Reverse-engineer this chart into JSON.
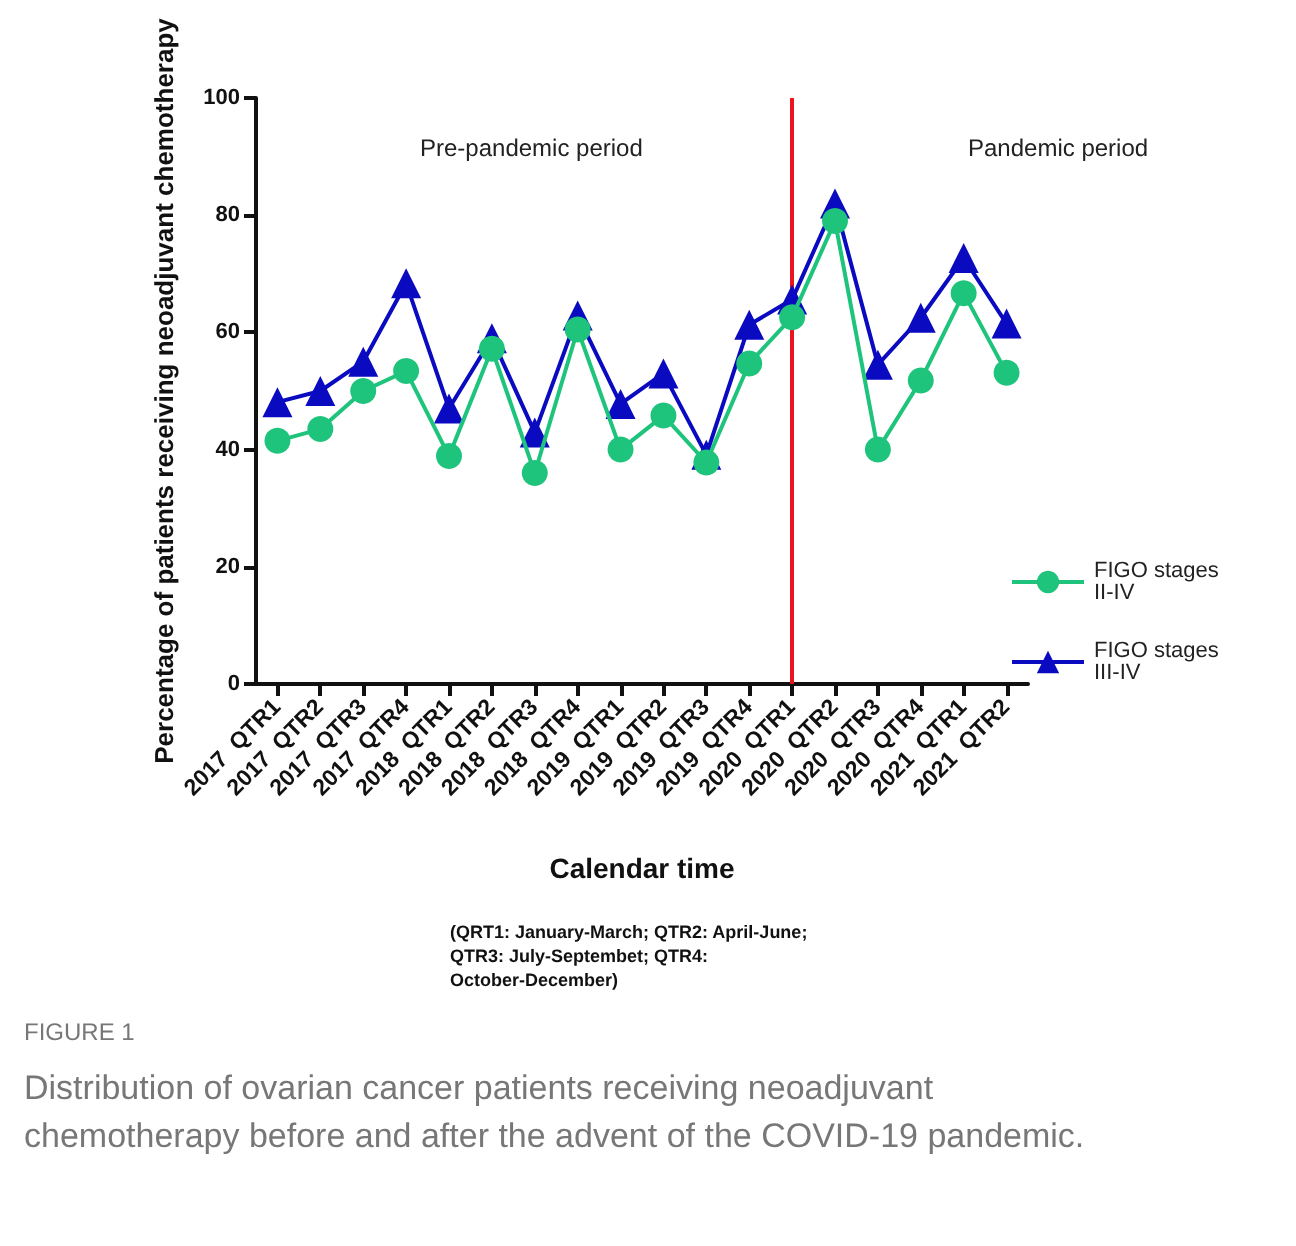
{
  "chart_data": {
    "type": "line",
    "xlabel": "Calendar time",
    "ylabel": "Percentage of patients receiving neoadjuvant chemotherapy",
    "categories": [
      "2017  QTR1",
      "2017  QTR2",
      "2017  QTR3",
      "2017  QTR4",
      "2018  QTR1",
      "2018  QTR2",
      "2018  QTR3",
      "2018  QTR4",
      "2019  QTR1",
      "2019  QTR2",
      "2019  QTR3",
      "2019  QTR4",
      "2020  QTR1",
      "2020  QTR2",
      "2020  QTR3",
      "2020  QTR4",
      "2021  QTR1",
      "2021  QTR2"
    ],
    "series": [
      {
        "name": "FIGO stages II-IV",
        "color": "#1ec47c",
        "marker": "circle",
        "values": [
          41.5,
          43.5,
          50,
          53.4,
          38.9,
          57.2,
          36,
          60.5,
          40,
          45.8,
          37.8,
          54.7,
          62.6,
          79,
          40,
          51.8,
          66.7,
          53.1
        ]
      },
      {
        "name": "FIGO stages III-IV",
        "color": "#0a0ac0",
        "marker": "triangle",
        "values": [
          48.1,
          50,
          55,
          68.4,
          47,
          59,
          42.9,
          62.9,
          47.8,
          53,
          39.1,
          61.3,
          65.6,
          82,
          54.5,
          62.5,
          72.7,
          61.5
        ]
      }
    ],
    "ylim": [
      0,
      100
    ],
    "yticks": [
      0,
      20,
      40,
      60,
      80,
      100
    ],
    "grid": false,
    "legend": "right",
    "ref_lines": [
      {
        "axis": "x",
        "value": "2020  QTR1",
        "color": "#e8141e"
      }
    ],
    "annotations": [
      "Pre-pandemic period",
      "Pandemic period",
      "(QRT1: January-March; QTR2: April-June; QTR3: July-Septembet; QTR4: October-December)",
      "FIGURE 1",
      "Distribution of ovarian cancer patients receiving neoadjuvant chemotherapy before and after the advent of the COVID-19 pandemic."
    ]
  }
}
